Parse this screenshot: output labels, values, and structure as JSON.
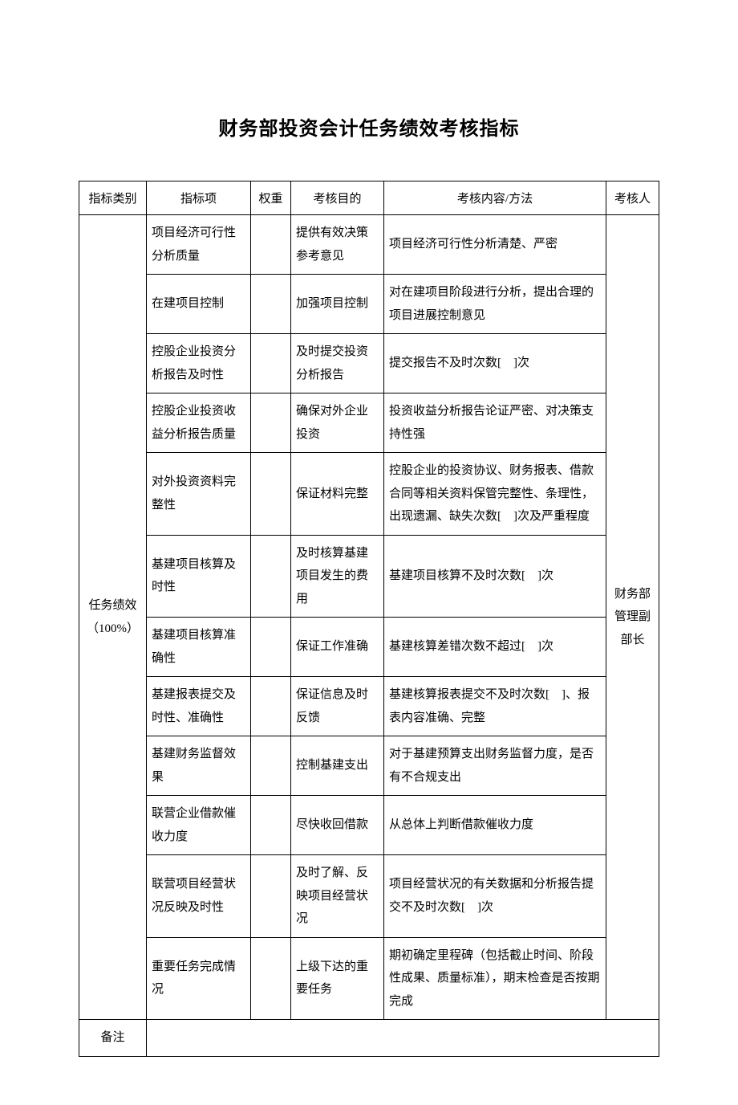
{
  "title": "财务部投资会计任务绩效考核指标",
  "headers": {
    "category": "指标类别",
    "item": "指标项",
    "weight": "权重",
    "purpose": "考核目的",
    "method": "考核内容/方法",
    "person": "考核人"
  },
  "category_label": "任务绩效（100%）",
  "reviewer": "财务部管理副部长",
  "rows": [
    {
      "item": "项目经济可行性分析质量",
      "weight": "",
      "purpose": "提供有效决策参考意见",
      "method": "项目经济可行性分析清楚、严密"
    },
    {
      "item": "在建项目控制",
      "weight": "",
      "purpose": "加强项目控制",
      "method": "对在建项目阶段进行分析，提出合理的项目进展控制意见"
    },
    {
      "item": "控股企业投资分析报告及时性",
      "weight": "",
      "purpose": "及时提交投资分析报告",
      "method": "提交报告不及时次数[　]次"
    },
    {
      "item": "控股企业投资收益分析报告质量",
      "weight": "",
      "purpose": "确保对外企业投资",
      "method": "投资收益分析报告论证严密、对决策支持性强"
    },
    {
      "item": "对外投资资料完整性",
      "weight": "",
      "purpose": "保证材料完整",
      "method": "控股企业的投资协议、财务报表、借款合同等相关资料保管完整性、条理性，出现遗漏、缺失次数[　]次及严重程度"
    },
    {
      "item": "基建项目核算及时性",
      "weight": "",
      "purpose": "及时核算基建项目发生的费用",
      "method": "基建项目核算不及时次数[　]次"
    },
    {
      "item": "基建项目核算准确性",
      "weight": "",
      "purpose": "保证工作准确",
      "method": "基建核算差错次数不超过[　]次"
    },
    {
      "item": "基建报表提交及时性、准确性",
      "weight": "",
      "purpose": "保证信息及时反馈",
      "method": "基建核算报表提交不及时次数[　]、报表内容准确、完整"
    },
    {
      "item": "基建财务监督效果",
      "weight": "",
      "purpose": "控制基建支出",
      "method": "对于基建预算支出财务监督力度，是否有不合规支出"
    },
    {
      "item": "联营企业借款催收力度",
      "weight": "",
      "purpose": "尽快收回借款",
      "method": "从总体上判断借款催收力度"
    },
    {
      "item": "联营项目经营状况反映及时性",
      "weight": "",
      "purpose": "及时了解、反映项目经营状况",
      "method": "项目经营状况的有关数据和分析报告提交不及时次数[　]次"
    },
    {
      "item": "重要任务完成情况",
      "weight": "",
      "purpose": "上级下达的重要任务",
      "method": "期初确定里程碑（包括截止时间、阶段性成果、质量标准），期末检查是否按期完成"
    }
  ],
  "footer": {
    "label": "备注",
    "content": ""
  },
  "style": {
    "font_family": "SimSun",
    "title_fontsize": 24,
    "body_fontsize": 15,
    "border_color": "#000000",
    "background_color": "#ffffff",
    "line_height": 1.9
  }
}
